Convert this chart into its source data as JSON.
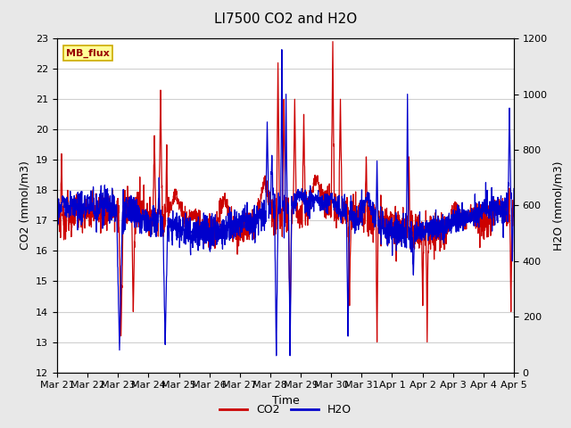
{
  "title": "LI7500 CO2 and H2O",
  "xlabel": "Time",
  "ylabel_left": "CO2 (mmol/m3)",
  "ylabel_right": "H2O (mmol/m3)",
  "ylim_left": [
    12.0,
    23.0
  ],
  "ylim_right": [
    0,
    1200
  ],
  "yticks_left": [
    12.0,
    13.0,
    14.0,
    15.0,
    16.0,
    17.0,
    18.0,
    19.0,
    20.0,
    21.0,
    22.0,
    23.0
  ],
  "yticks_right": [
    0,
    200,
    400,
    600,
    800,
    1000,
    1200
  ],
  "xtick_labels": [
    "Mar 21",
    "Mar 22",
    "Mar 23",
    "Mar 24",
    "Mar 25",
    "Mar 26",
    "Mar 27",
    "Mar 28",
    "Mar 29",
    "Mar 30",
    "Mar 31",
    "Apr 1",
    "Apr 2",
    "Apr 3",
    "Apr 4",
    "Apr 5"
  ],
  "color_co2": "#cc0000",
  "color_h2o": "#0000cc",
  "legend_label_co2": "CO2",
  "legend_label_h2o": "H2O",
  "watermark_text": "MB_flux",
  "watermark_bg": "#ffff99",
  "watermark_border": "#ccaa00",
  "fig_bg_color": "#e8e8e8",
  "plot_bg_color": "#ffffff",
  "grid_color": "#d0d0d0",
  "title_fontsize": 11,
  "axis_fontsize": 9,
  "tick_fontsize": 8,
  "legend_fontsize": 9,
  "linewidth": 0.9
}
